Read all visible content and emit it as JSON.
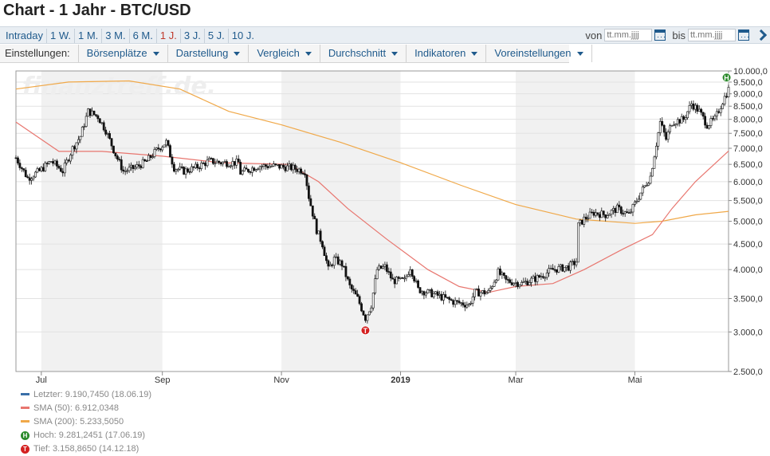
{
  "title": "Chart - 1 Jahr - BTC/USD",
  "periods": [
    {
      "label": "Intraday",
      "active": false
    },
    {
      "label": "1 W.",
      "active": false
    },
    {
      "label": "1 M.",
      "active": false
    },
    {
      "label": "3 M.",
      "active": false
    },
    {
      "label": "6 M.",
      "active": false
    },
    {
      "label": "1 J.",
      "active": true
    },
    {
      "label": "3 J.",
      "active": false
    },
    {
      "label": "5 J.",
      "active": false
    },
    {
      "label": "10 J.",
      "active": false
    }
  ],
  "range": {
    "from_label": "von",
    "to_label": "bis",
    "placeholder": "tt.mm.jjjj"
  },
  "settings": {
    "label": "Einstellungen:",
    "items": [
      "Börsenplätze",
      "Darstellung",
      "Vergleich",
      "Durchschnitt",
      "Indikatoren",
      "Voreinstellungen"
    ]
  },
  "watermark": "finanztreff.de.",
  "colors": {
    "sma50": "#e8766f",
    "sma200": "#f0a848",
    "last": "#3a6fa8",
    "high": "#2a8a2a",
    "low": "#d42020",
    "shade": "#f1f1f1",
    "candle": "#111111",
    "grid": "#e2e2e2"
  },
  "legend": [
    {
      "type": "line",
      "color_key": "last",
      "text": "Letzter: 9.190,7450 (18.06.19)"
    },
    {
      "type": "line",
      "color_key": "sma50",
      "text": "SMA (50): 6.912,0348"
    },
    {
      "type": "line",
      "color_key": "sma200",
      "text": "SMA (200): 5.233,5050"
    },
    {
      "type": "badge",
      "color_key": "high",
      "symbol": "H",
      "text": "Hoch: 9.281,2451 (17.06.19)"
    },
    {
      "type": "badge",
      "color_key": "low",
      "symbol": "T",
      "text": "Tief: 3.158,8650 (14.12.18)"
    }
  ],
  "chart_data": {
    "type": "candlestick",
    "scale": "log",
    "ylim": [
      2500,
      10000
    ],
    "y_ticks": [
      {
        "value": 10000,
        "label": "10.000,0"
      },
      {
        "value": 9500,
        "label": "9.500,0"
      },
      {
        "value": 9000,
        "label": "9.000,0"
      },
      {
        "value": 8500,
        "label": "8.500,0"
      },
      {
        "value": 8000,
        "label": "8.000,0"
      },
      {
        "value": 7500,
        "label": "7.500,0"
      },
      {
        "value": 7000,
        "label": "7.000,0"
      },
      {
        "value": 6500,
        "label": "6.500,0"
      },
      {
        "value": 6000,
        "label": "6.000,0"
      },
      {
        "value": 5500,
        "label": "5.500,0"
      },
      {
        "value": 5000,
        "label": "5.000,0"
      },
      {
        "value": 4500,
        "label": "4.500,0"
      },
      {
        "value": 4000,
        "label": "4.000,0"
      },
      {
        "value": 3500,
        "label": "3.500,0"
      },
      {
        "value": 3000,
        "label": "3.000,0"
      },
      {
        "value": 2500,
        "label": "2.500,0"
      }
    ],
    "x_range": [
      "2018-06-18",
      "2019-06-18"
    ],
    "x_ticks": [
      {
        "date": "2018-07-01",
        "label": "Jul",
        "bold": false
      },
      {
        "date": "2018-09-01",
        "label": "Sep",
        "bold": false
      },
      {
        "date": "2018-11-01",
        "label": "Nov",
        "bold": false
      },
      {
        "date": "2019-01-01",
        "label": "2019",
        "bold": true
      },
      {
        "date": "2019-03-01",
        "label": "Mar",
        "bold": false
      },
      {
        "date": "2019-05-01",
        "label": "Mai",
        "bold": false
      }
    ],
    "shaded_months": [
      [
        "2018-07-01",
        "2018-09-01"
      ],
      [
        "2018-11-01",
        "2019-01-01"
      ],
      [
        "2019-03-01",
        "2019-05-01"
      ]
    ],
    "price": [
      [
        "2018-06-18",
        6700
      ],
      [
        "2018-06-24",
        6100
      ],
      [
        "2018-06-30",
        6300
      ],
      [
        "2018-07-06",
        6600
      ],
      [
        "2018-07-12",
        6300
      ],
      [
        "2018-07-17",
        7000
      ],
      [
        "2018-07-21",
        7400
      ],
      [
        "2018-07-25",
        8300
      ],
      [
        "2018-07-30",
        8100
      ],
      [
        "2018-08-03",
        7600
      ],
      [
        "2018-08-08",
        6800
      ],
      [
        "2018-08-12",
        6300
      ],
      [
        "2018-08-18",
        6400
      ],
      [
        "2018-08-24",
        6600
      ],
      [
        "2018-08-30",
        7000
      ],
      [
        "2018-09-03",
        7200
      ],
      [
        "2018-09-07",
        6400
      ],
      [
        "2018-09-12",
        6300
      ],
      [
        "2018-09-18",
        6400
      ],
      [
        "2018-09-25",
        6600
      ],
      [
        "2018-10-02",
        6550
      ],
      [
        "2018-10-10",
        6550
      ],
      [
        "2018-10-11",
        6250
      ],
      [
        "2018-10-20",
        6450
      ],
      [
        "2018-10-28",
        6450
      ],
      [
        "2018-11-06",
        6400
      ],
      [
        "2018-11-13",
        6300
      ],
      [
        "2018-11-15",
        5600
      ],
      [
        "2018-11-19",
        4800
      ],
      [
        "2018-11-22",
        4500
      ],
      [
        "2018-11-25",
        4000
      ],
      [
        "2018-11-28",
        4200
      ],
      [
        "2018-12-02",
        4100
      ],
      [
        "2018-12-06",
        3700
      ],
      [
        "2018-12-10",
        3500
      ],
      [
        "2018-12-14",
        3200
      ],
      [
        "2018-12-17",
        3400
      ],
      [
        "2018-12-20",
        4000
      ],
      [
        "2018-12-24",
        4050
      ],
      [
        "2018-12-28",
        3800
      ],
      [
        "2019-01-03",
        3800
      ],
      [
        "2019-01-06",
        4050
      ],
      [
        "2019-01-10",
        3650
      ],
      [
        "2019-01-20",
        3550
      ],
      [
        "2019-01-28",
        3450
      ],
      [
        "2019-02-05",
        3400
      ],
      [
        "2019-02-08",
        3600
      ],
      [
        "2019-02-15",
        3600
      ],
      [
        "2019-02-20",
        3950
      ],
      [
        "2019-02-24",
        3800
      ],
      [
        "2019-03-04",
        3750
      ],
      [
        "2019-03-12",
        3850
      ],
      [
        "2019-03-20",
        4000
      ],
      [
        "2019-03-28",
        4050
      ],
      [
        "2019-04-01",
        4150
      ],
      [
        "2019-04-02",
        4900
      ],
      [
        "2019-04-05",
        5050
      ],
      [
        "2019-04-10",
        5200
      ],
      [
        "2019-04-16",
        5150
      ],
      [
        "2019-04-22",
        5300
      ],
      [
        "2019-04-28",
        5150
      ],
      [
        "2019-05-04",
        5700
      ],
      [
        "2019-05-09",
        6150
      ],
      [
        "2019-05-11",
        6800
      ],
      [
        "2019-05-14",
        7900
      ],
      [
        "2019-05-17",
        7300
      ],
      [
        "2019-05-20",
        7900
      ],
      [
        "2019-05-26",
        8000
      ],
      [
        "2019-05-30",
        8600
      ],
      [
        "2019-06-03",
        8300
      ],
      [
        "2019-06-07",
        7800
      ],
      [
        "2019-06-11",
        8000
      ],
      [
        "2019-06-15",
        8700
      ],
      [
        "2019-06-18",
        9190
      ]
    ],
    "sma50": [
      [
        "2018-06-18",
        7900
      ],
      [
        "2018-07-10",
        6900
      ],
      [
        "2018-08-01",
        6900
      ],
      [
        "2018-09-01",
        6750
      ],
      [
        "2018-10-01",
        6550
      ],
      [
        "2018-11-05",
        6500
      ],
      [
        "2018-11-20",
        6000
      ],
      [
        "2018-12-05",
        5300
      ],
      [
        "2018-12-25",
        4600
      ],
      [
        "2019-01-15",
        4000
      ],
      [
        "2019-01-31",
        3700
      ],
      [
        "2019-02-15",
        3600
      ],
      [
        "2019-03-01",
        3700
      ],
      [
        "2019-03-20",
        3750
      ],
      [
        "2019-04-05",
        4000
      ],
      [
        "2019-04-25",
        4400
      ],
      [
        "2019-05-10",
        4700
      ],
      [
        "2019-05-20",
        5300
      ],
      [
        "2019-06-01",
        6000
      ],
      [
        "2019-06-18",
        6912
      ]
    ],
    "sma200": [
      [
        "2018-06-18",
        9200
      ],
      [
        "2018-07-15",
        9500
      ],
      [
        "2018-08-15",
        9550
      ],
      [
        "2018-09-10",
        9200
      ],
      [
        "2018-10-05",
        8300
      ],
      [
        "2018-11-01",
        7800
      ],
      [
        "2018-12-01",
        7200
      ],
      [
        "2019-01-01",
        6550
      ],
      [
        "2019-02-01",
        5900
      ],
      [
        "2019-03-01",
        5400
      ],
      [
        "2019-04-01",
        5050
      ],
      [
        "2019-05-01",
        4950
      ],
      [
        "2019-05-15",
        5000
      ],
      [
        "2019-06-01",
        5150
      ],
      [
        "2019-06-18",
        5233
      ]
    ],
    "high": {
      "date": "2019-06-17",
      "value": 9281.2451,
      "symbol": "H"
    },
    "low": {
      "date": "2018-12-14",
      "value": 3158.865,
      "symbol": "T"
    }
  }
}
